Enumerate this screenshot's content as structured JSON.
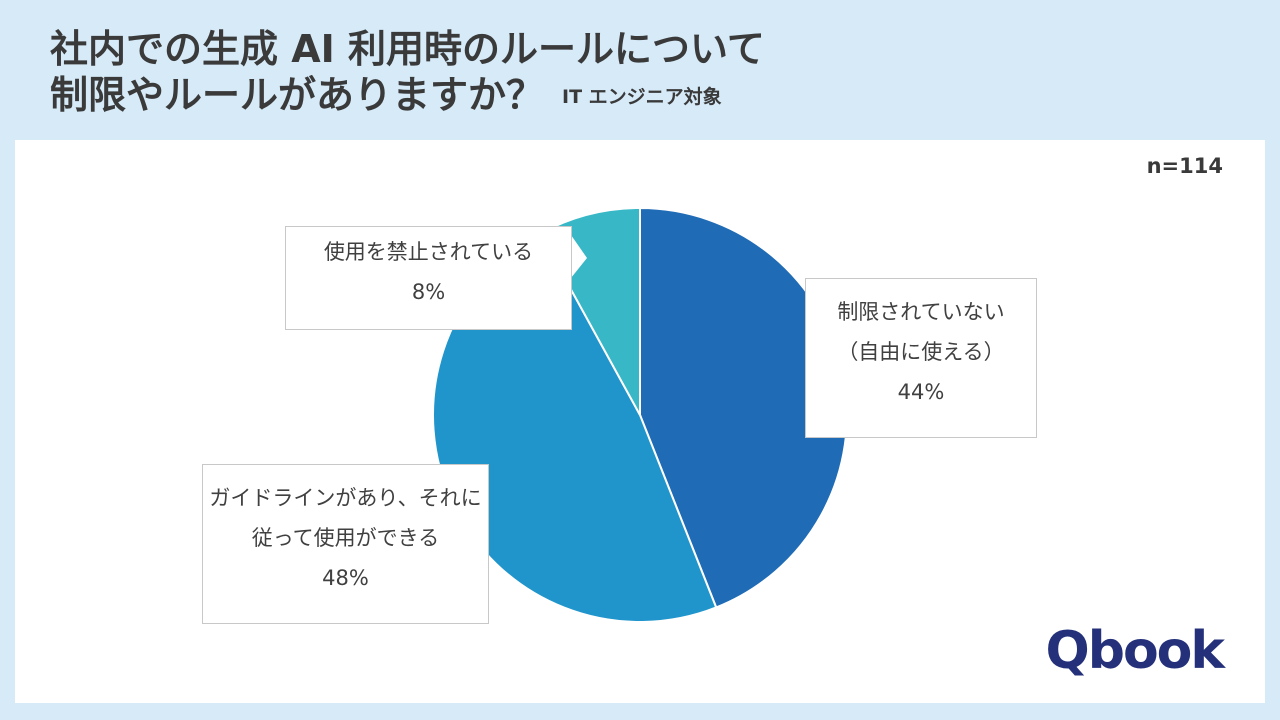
{
  "header": {
    "title_line1": "社内での生成 AI 利用時のルールについて",
    "title_line2": "制限やルールがありますか？",
    "audience": "IT エンジニア対象"
  },
  "sample_size": "n=114",
  "brand": {
    "logo_text": "Qbook"
  },
  "colors": {
    "background": "#d6eaf8",
    "title": "#3a3a3a",
    "logo": "#24307a"
  },
  "chart_data": {
    "type": "pie",
    "title": "社内での生成 AI 利用時のルールについて制限やルールがありますか？",
    "slices": [
      {
        "label": "制限されていない（自由に使える）",
        "label_lines": [
          "制限されていない",
          "（自由に使える）"
        ],
        "value": 44,
        "value_label": "44%",
        "color": "#1f6bb5"
      },
      {
        "label": "ガイドラインがあり、それに従って使用ができる",
        "label_lines": [
          "ガイドラインがあり、それに",
          "従って使用ができる"
        ],
        "value": 48,
        "value_label": "48%",
        "color": "#2095cc"
      },
      {
        "label": "使用を禁止されている",
        "label_lines": [
          "使用を禁止されている"
        ],
        "value": 8,
        "value_label": "8%",
        "color": "#38b8c7"
      }
    ],
    "start_angle": "12 o'clock",
    "direction": "clockwise"
  }
}
